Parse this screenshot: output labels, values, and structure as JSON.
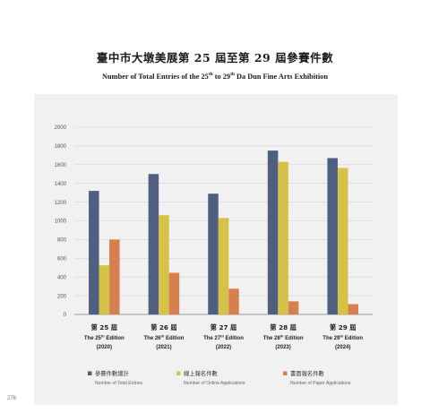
{
  "title_zh": "臺中市大墩美展第 25 屆至第 29 屆參賽件數",
  "title_en": {
    "pre": "Number of Total Entries of the 25",
    "sup1": "th",
    "mid": " to 29",
    "sup2": "th",
    "post": " Da Dun Fine Arts Exhibition"
  },
  "page_number": "276",
  "colors": {
    "total": "#4f5f80",
    "online": "#d6c247",
    "paper": "#d7804f",
    "panel": "#f1f1f1",
    "grid": "#d2d2d2"
  },
  "chart_data": {
    "type": "bar",
    "title": "臺中市大墩美展第 25 屆至第 29 屆參賽件數",
    "subtitle": "Number of Total Entries of the 25th to 29th Da Dun Fine Arts Exhibition",
    "categories": [
      {
        "zh": "第 25 屆",
        "en_pre": "The 25",
        "en_sup": "th",
        "en_post": " Edition",
        "year": "(2020)"
      },
      {
        "zh": "第 26 屆",
        "en_pre": "The 26",
        "en_sup": "th",
        "en_post": " Edition",
        "year": "(2021)"
      },
      {
        "zh": "第 27 屆",
        "en_pre": "The 27",
        "en_sup": "th",
        "en_post": " Edition",
        "year": "(2022)"
      },
      {
        "zh": "第 28 屆",
        "en_pre": "The 28",
        "en_sup": "th",
        "en_post": " Edition",
        "year": "(2023)"
      },
      {
        "zh": "第 29 屆",
        "en_pre": "The 29",
        "en_sup": "th",
        "en_post": " Edition",
        "year": "(2024)"
      }
    ],
    "series": [
      {
        "key": "total",
        "name": "參賽件數總計",
        "name_en": "Number of Total Entries",
        "values": [
          1320,
          1500,
          1290,
          1750,
          1670
        ]
      },
      {
        "key": "online",
        "name": "線上報名件數",
        "name_en": "Number of Online Applications",
        "values": [
          525,
          1060,
          1030,
          1630,
          1565
        ]
      },
      {
        "key": "paper",
        "name": "書面報名件數",
        "name_en": "Number of Paper Applications",
        "values": [
          800,
          445,
          275,
          140,
          110
        ]
      }
    ],
    "yticks": [
      0,
      200,
      400,
      600,
      800,
      1000,
      1200,
      1400,
      1600,
      1800,
      2000
    ],
    "ylim": [
      0,
      2000
    ],
    "grid": true,
    "legend": "bottom"
  }
}
